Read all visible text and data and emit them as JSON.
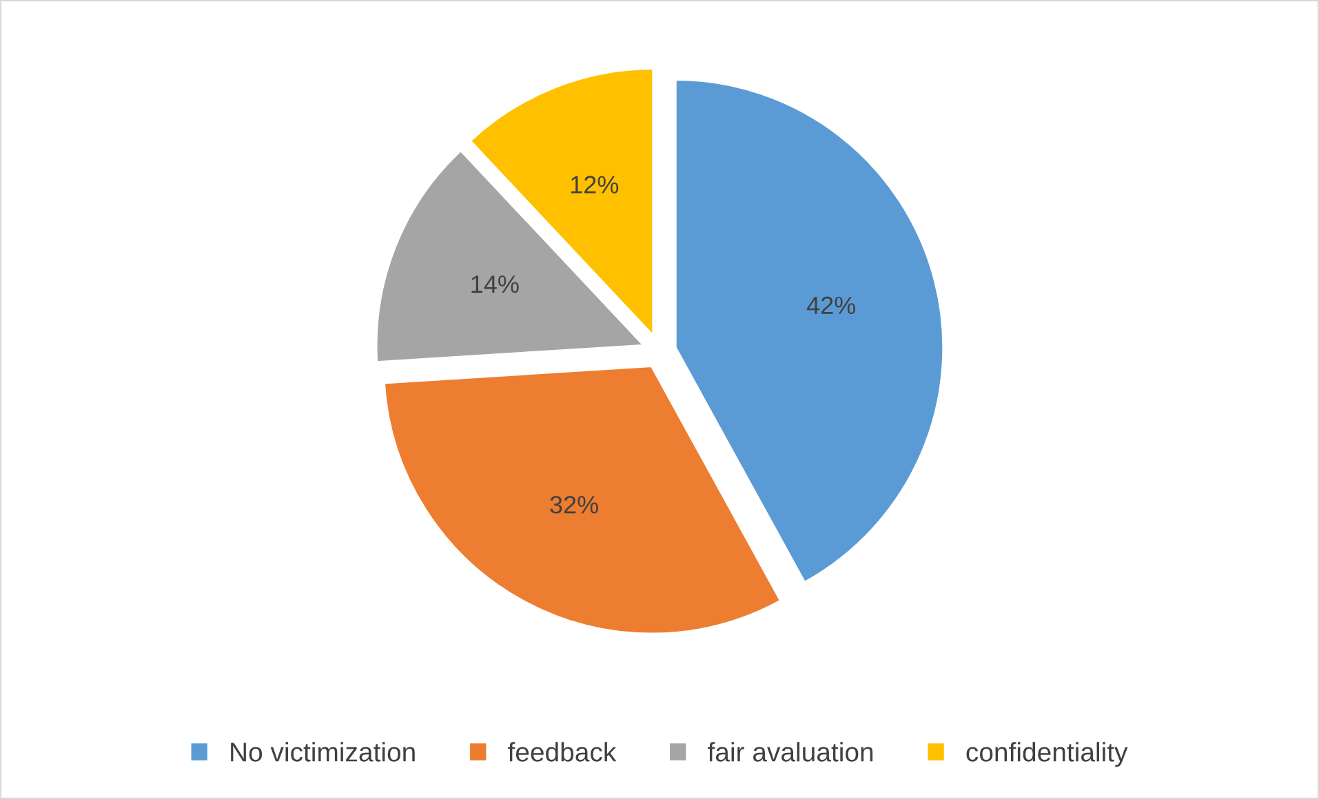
{
  "chart_data": {
    "type": "pie",
    "categories": [
      "No victimization",
      "feedback",
      "fair avaluation",
      "confidentiality"
    ],
    "values": [
      42,
      32,
      14,
      12
    ],
    "colors": [
      "#5b9bd5",
      "#ed7d31",
      "#a5a5a5",
      "#ffc000"
    ],
    "value_labels": [
      "42%",
      "32%",
      "14%",
      "12%"
    ],
    "legend": "bottom"
  }
}
